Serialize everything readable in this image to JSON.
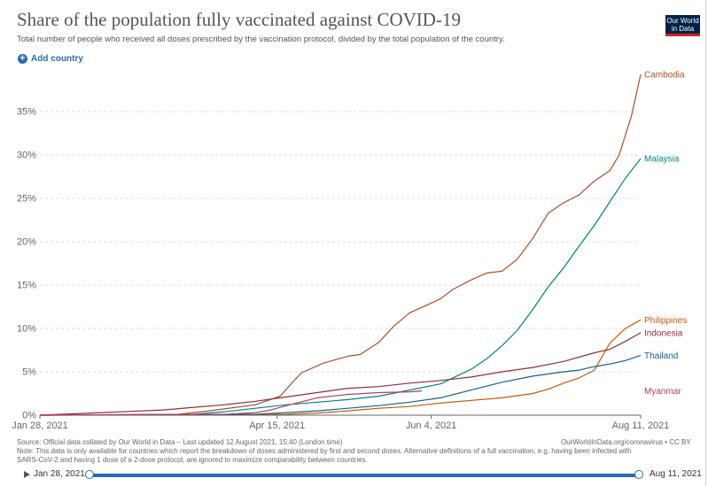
{
  "header": {
    "title": "Share of the population fully vaccinated against COVID-19",
    "subtitle": "Total number of people who received all doses prescribed by the vaccination protocol, divided by the total population of the country.",
    "logo_line1": "Our World",
    "logo_line2": "in Data",
    "add_country": "Add country"
  },
  "footer": {
    "source": "Source: Official data collated by Our World in Data – Last updated 12 August 2021, 15:40 (London time)",
    "note_line1": "Note: This data is only available for countries which report the breakdown of doses administered by first and second doses. Alternative definitions of a full vaccination, e.g. having been infected with",
    "note_line2": "SARS-CoV-2 and having 1 dose of a 2-dose protocol, are ignored to maximize comparability between countries.",
    "credit": "OurWorldInData.org/coronavirus • CC BY"
  },
  "timeline": {
    "start_label": "Jan 28, 2021",
    "end_label": "Aug 11, 2021",
    "start_fraction": 0.0,
    "end_fraction": 1.0
  },
  "colors": {
    "Cambodia": "#a2522c",
    "Malaysia": "#00847e",
    "Philippines": "#c15a0d",
    "Indonesia": "#883039",
    "Thailand": "#18608a",
    "Myanmar": "#b13f64",
    "grid": "#dddddd",
    "axis": "#666666"
  },
  "chart_data": {
    "type": "line",
    "title": "Share of the population fully vaccinated against COVID-19",
    "xlabel": "",
    "ylabel": "",
    "x_range_days": [
      0,
      195
    ],
    "ylim": [
      0,
      39
    ],
    "yticks": [
      0,
      5,
      10,
      15,
      20,
      25,
      30,
      35
    ],
    "ytick_labels": [
      "0%",
      "5%",
      "10%",
      "15%",
      "20%",
      "25%",
      "30%",
      "35%"
    ],
    "xticks": [
      0,
      77,
      127,
      195
    ],
    "xtick_labels": [
      "Jan 28, 2021",
      "Apr 15, 2021",
      "Jun 4, 2021",
      "Aug 11, 2021"
    ],
    "series": [
      {
        "name": "Cambodia",
        "x": [
          0,
          45,
          55,
          70,
          78,
          82,
          85,
          92,
          100,
          104,
          110,
          115,
          120,
          125,
          130,
          134,
          140,
          145,
          150,
          155,
          160,
          165,
          170,
          175,
          180,
          185,
          188,
          192,
          195
        ],
        "y": [
          0,
          0.1,
          0.5,
          1.2,
          2.2,
          3.8,
          4.9,
          6.0,
          6.8,
          7.0,
          8.4,
          10.3,
          11.8,
          12.6,
          13.4,
          14.5,
          15.6,
          16.4,
          16.6,
          18.0,
          20.4,
          23.3,
          24.5,
          25.4,
          27.0,
          28.2,
          30.0,
          34.5,
          39.3
        ]
      },
      {
        "name": "Malaysia",
        "x": [
          0,
          50,
          60,
          70,
          80,
          90,
          100,
          110,
          120,
          130,
          140,
          145,
          150,
          155,
          160,
          165,
          170,
          175,
          180,
          185,
          190,
          195
        ],
        "y": [
          0,
          0.1,
          0.4,
          0.8,
          1.2,
          1.5,
          1.8,
          2.2,
          2.9,
          3.6,
          5.3,
          6.5,
          8.0,
          9.8,
          12.2,
          14.8,
          17.0,
          19.5,
          21.9,
          24.6,
          27.3,
          29.6
        ]
      },
      {
        "name": "Philippines",
        "x": [
          0,
          70,
          80,
          90,
          100,
          110,
          120,
          130,
          140,
          150,
          160,
          165,
          170,
          175,
          180,
          185,
          190,
          195
        ],
        "y": [
          0,
          0.05,
          0.1,
          0.25,
          0.5,
          0.8,
          1.0,
          1.4,
          1.7,
          2.0,
          2.5,
          3.0,
          3.7,
          4.3,
          5.2,
          8.3,
          10.0,
          11.0
        ]
      },
      {
        "name": "Indonesia",
        "x": [
          0,
          20,
          40,
          60,
          70,
          80,
          90,
          100,
          110,
          120,
          130,
          140,
          150,
          160,
          170,
          180,
          185,
          190,
          195
        ],
        "y": [
          0,
          0.3,
          0.6,
          1.2,
          1.6,
          2.1,
          2.6,
          3.1,
          3.3,
          3.7,
          4.0,
          4.4,
          5.0,
          5.5,
          6.2,
          7.2,
          7.6,
          8.5,
          9.5
        ]
      },
      {
        "name": "Thailand",
        "x": [
          0,
          60,
          70,
          80,
          90,
          100,
          110,
          120,
          130,
          140,
          150,
          160,
          170,
          175,
          180,
          185,
          190,
          195
        ],
        "y": [
          0,
          0.05,
          0.1,
          0.3,
          0.5,
          0.8,
          1.1,
          1.5,
          2.0,
          2.9,
          3.8,
          4.5,
          5.0,
          5.2,
          5.6,
          5.9,
          6.3,
          6.9
        ]
      },
      {
        "name": "Myanmar",
        "x": [
          0,
          60,
          70,
          75,
          80,
          90,
          100,
          110,
          120,
          124
        ],
        "y": [
          0,
          0.1,
          0.3,
          0.6,
          1.1,
          2.0,
          2.4,
          2.6,
          2.7,
          2.8
        ]
      }
    ],
    "series_end_labels": [
      "Cambodia",
      "Malaysia",
      "Philippines",
      "Indonesia",
      "Thailand",
      "Myanmar"
    ]
  }
}
